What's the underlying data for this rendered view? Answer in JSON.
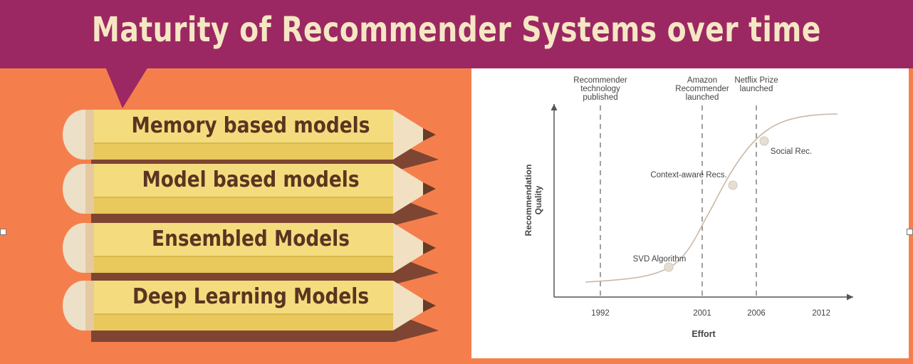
{
  "title": "Maturity of Recommender Systems over time",
  "pencils": [
    {
      "label": "Memory based models"
    },
    {
      "label": "Model based models"
    },
    {
      "label": "Ensembled Models"
    },
    {
      "label": "Deep Learning Models"
    }
  ],
  "colors": {
    "banner": "#9b2863",
    "background": "#f57f4c",
    "pencil_body": "#f4dc7e",
    "pencil_text": "#5b3421",
    "pencil_shadow": "#7e4532"
  },
  "chart_data": {
    "type": "line",
    "xlabel": "Effort",
    "ylabel": "Recommendation Quality",
    "x_ticks": [
      "1992",
      "2001",
      "2006",
      "2012"
    ],
    "milestones": [
      {
        "year": 1992,
        "label": [
          "Recommender",
          "technology",
          "published"
        ]
      },
      {
        "year": 2001,
        "label": [
          "Amazon",
          "Recommender",
          "launched"
        ]
      },
      {
        "year": 2006,
        "label": [
          "Netflix Prize",
          "launched"
        ]
      }
    ],
    "annotations": [
      {
        "label": "SVD Algorithm",
        "year": 1999
      },
      {
        "label": "Context-aware Recs.",
        "year": 2003.5
      },
      {
        "label": "Social Rec.",
        "year": 2006.5
      }
    ],
    "xlim": [
      1991,
      2014
    ],
    "ylim": [
      0,
      1
    ]
  }
}
